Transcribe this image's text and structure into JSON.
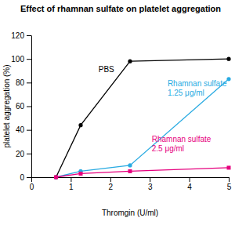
{
  "chart_data": {
    "type": "line",
    "title": "Effect of rhamnan sulfate on platelet aggregation",
    "x_label": "Thromgin (U/ml)",
    "y_label": "platelet aggregation (%)",
    "x": [
      0.625,
      1.25,
      2.5,
      5
    ],
    "series": [
      {
        "name": "PBS",
        "color": "#000000",
        "marker": "circle",
        "values": [
          0,
          44,
          98,
          100
        ]
      },
      {
        "name": "Rhamnan sulfate 1.25 μg/ml",
        "color": "#29abe2",
        "marker": "circle",
        "values": [
          0,
          5,
          10,
          83
        ]
      },
      {
        "name": "Rhamnan sulfate 2.5 μg/ml",
        "color": "#e6007e",
        "marker": "square",
        "values": [
          0,
          3,
          5,
          8
        ]
      }
    ],
    "xlim": [
      0,
      5
    ],
    "xticks": [
      0,
      1,
      2,
      3,
      4,
      5
    ],
    "ylim": [
      0,
      120
    ],
    "yticks": [
      0,
      20,
      40,
      60,
      80,
      100,
      120
    ],
    "grid": false
  }
}
